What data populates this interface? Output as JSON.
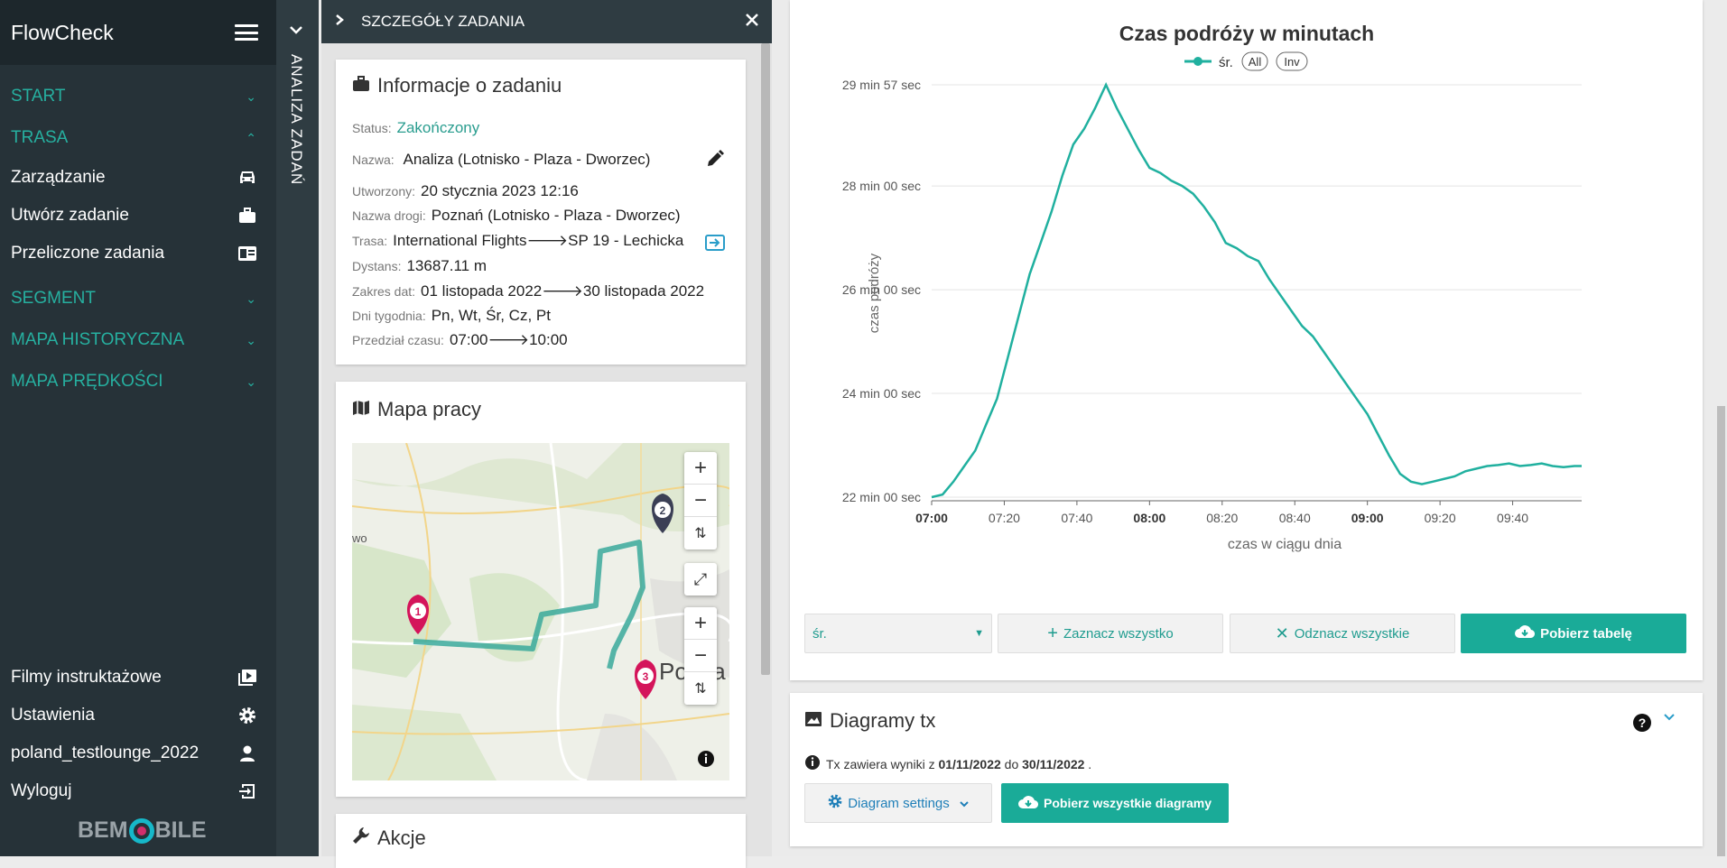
{
  "sidebar": {
    "brand": "FlowCheck",
    "sections": [
      {
        "label": "START",
        "expanded": false
      },
      {
        "label": "TRASA",
        "expanded": true
      },
      {
        "label": "SEGMENT",
        "expanded": false
      },
      {
        "label": "MAPA HISTORYCZNA",
        "expanded": false
      },
      {
        "label": "MAPA PRĘDKOŚCI",
        "expanded": false
      }
    ],
    "trasa_items": [
      {
        "label": "Zarządzanie",
        "icon": "car-icon"
      },
      {
        "label": "Utwórz zadanie",
        "icon": "briefcase-icon"
      },
      {
        "label": "Przeliczone zadania",
        "icon": "list-card-icon"
      }
    ],
    "bottom_items": [
      {
        "label": "Filmy instruktażowe",
        "icon": "video-icon"
      },
      {
        "label": "Ustawienia",
        "icon": "gear-icon"
      },
      {
        "label": "poland_testlounge_2022",
        "icon": "user-icon"
      },
      {
        "label": "Wyloguj",
        "icon": "logout-icon"
      }
    ],
    "logo_left": "BEM",
    "logo_right": "BILE"
  },
  "vstrip": {
    "label": "ANALIZA ZADAŃ"
  },
  "details": {
    "header": "SZCZEGÓŁY ZADANIA",
    "info_title": "Informacje o zadaniu",
    "status_label": "Status:",
    "status_value": "Zakończony",
    "name_label": "Nazwa:",
    "name_value": "Analiza (Lotnisko - Plaza - Dworzec)",
    "created_label": "Utworzony:",
    "created_value": "20 stycznia 2023 12:16",
    "road_label": "Nazwa drogi:",
    "road_value": "Poznań (Lotnisko - Plaza - Dworzec)",
    "route_label": "Trasa:",
    "route_from": "International Flights",
    "route_to": "SP 19 - Lechicka",
    "distance_label": "Dystans:",
    "distance_value": "13687.11 m",
    "range_label": "Zakres dat:",
    "range_from": "01 listopada 2022",
    "range_to": "30 listopada 2022",
    "days_label": "Dni tygodnia:",
    "days_value": "Pn, Wt, Śr, Cz, Pt",
    "time_label": "Przedział czasu:",
    "time_from": "07:00",
    "time_to": "10:00",
    "arrow": "🡒",
    "map_title": "Mapa pracy",
    "map_place": "Pozna",
    "map_place_left": "wo",
    "markers": [
      "1",
      "2",
      "3"
    ],
    "actions_title": "Akcje"
  },
  "chart": {
    "legend_avg": "śr.",
    "legend_all": "All",
    "legend_inv": "Inv",
    "line_color": "#20b09f"
  },
  "chart_data": {
    "type": "line",
    "title": "Czas podróży w minutach",
    "xlabel": "czas w ciągu dnia",
    "ylabel": "czas podróży",
    "x_ticks": [
      "07:00",
      "07:20",
      "07:40",
      "08:00",
      "08:20",
      "08:40",
      "09:00",
      "09:20",
      "09:40"
    ],
    "x_ticks_bold": [
      "07:00",
      "08:00",
      "09:00"
    ],
    "y_ticks": [
      "22 min 00 sec",
      "24 min 00 sec",
      "26 min 00 sec",
      "28 min 00 sec",
      "29 min 57 sec"
    ],
    "ylim_minutes": [
      22.0,
      29.95
    ],
    "xlim": [
      "07:00",
      "09:59"
    ],
    "grid": true,
    "series": [
      {
        "name": "śr.",
        "x": [
          "07:00",
          "07:03",
          "07:06",
          "07:09",
          "07:12",
          "07:15",
          "07:18",
          "07:21",
          "07:24",
          "07:27",
          "07:30",
          "07:33",
          "07:36",
          "07:39",
          "07:42",
          "07:45",
          "07:48",
          "07:51",
          "07:54",
          "07:57",
          "08:00",
          "08:03",
          "08:06",
          "08:09",
          "08:12",
          "08:15",
          "08:18",
          "08:21",
          "08:24",
          "08:27",
          "08:30",
          "08:33",
          "08:36",
          "08:39",
          "08:42",
          "08:45",
          "08:48",
          "08:51",
          "08:54",
          "08:57",
          "09:00",
          "09:03",
          "09:06",
          "09:09",
          "09:12",
          "09:15",
          "09:18",
          "09:21",
          "09:24",
          "09:27",
          "09:30",
          "09:33",
          "09:36",
          "09:39",
          "09:42",
          "09:45",
          "09:48",
          "09:51",
          "09:54",
          "09:57",
          "09:59"
        ],
        "y": [
          22.0,
          22.05,
          22.3,
          22.6,
          22.9,
          23.4,
          23.9,
          24.7,
          25.5,
          26.3,
          26.9,
          27.5,
          28.2,
          28.8,
          29.1,
          29.5,
          29.95,
          29.5,
          29.1,
          28.7,
          28.35,
          28.25,
          28.1,
          28.0,
          27.85,
          27.6,
          27.3,
          26.9,
          26.8,
          26.65,
          26.55,
          26.2,
          25.9,
          25.6,
          25.3,
          25.1,
          24.8,
          24.5,
          24.2,
          23.9,
          23.6,
          23.2,
          22.8,
          22.45,
          22.3,
          22.25,
          22.3,
          22.35,
          22.4,
          22.5,
          22.55,
          22.6,
          22.62,
          22.65,
          22.6,
          22.62,
          22.65,
          22.6,
          22.58,
          22.6,
          22.6
        ]
      }
    ]
  },
  "controls": {
    "select_value": "śr.",
    "select_all": "Zaznacz wszystko",
    "deselect_all": "Odznacz wszystkie",
    "download_table": "Pobierz tabelę"
  },
  "diagrams": {
    "title": "Diagramy tx",
    "info_prefix": "Tx zawiera wyniki z ",
    "date_from": "01/11/2022",
    "info_mid": " do ",
    "date_to": "30/11/2022",
    "info_suffix": " .",
    "settings_label": "Diagram settings",
    "download_all": "Pobierz wszystkie diagramy"
  }
}
